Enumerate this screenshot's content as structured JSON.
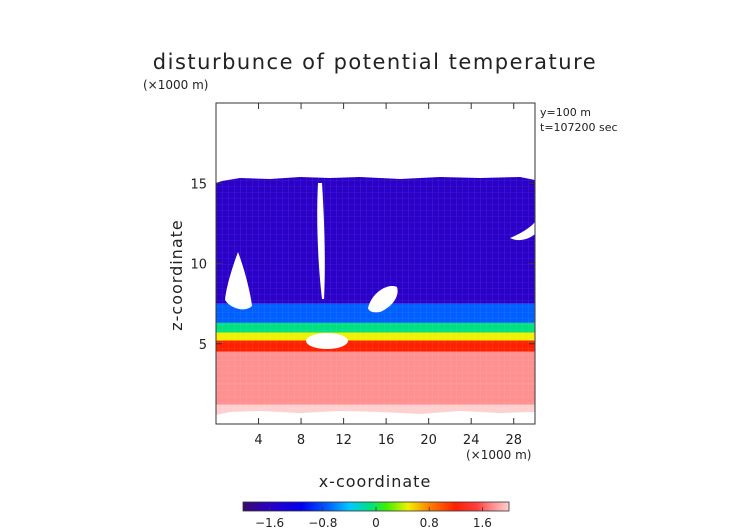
{
  "chart_data": {
    "type": "heatmap",
    "title": "disturbunce of potential temperature",
    "unit_label": "(×1000 m)",
    "annotations": [
      "y=100 m",
      "t=107200 sec"
    ],
    "xlabel": "x-coordinate",
    "ylabel": "z-coordinate",
    "x_unit": "(×1000 m)",
    "xlim": [
      0,
      30
    ],
    "ylim": [
      0,
      20
    ],
    "x_ticks": [
      4,
      8,
      12,
      16,
      20,
      24,
      28
    ],
    "x_tick_labels": [
      "4",
      "8",
      "12",
      "16",
      "20",
      "24",
      "28"
    ],
    "y_ticks": [
      5,
      10,
      15
    ],
    "y_tick_labels": [
      "5",
      "10",
      "15"
    ],
    "colorbar": {
      "range": [
        -2.0,
        2.0
      ],
      "ticks": [
        -1.6,
        -0.8,
        0,
        0.8,
        1.6
      ],
      "tick_labels": [
        "−1.6",
        "−0.8",
        "0",
        "0.8",
        "1.6"
      ],
      "colors": [
        "#3a0a6e",
        "#2a00c8",
        "#0000f0",
        "#0060ff",
        "#00c8ff",
        "#00e080",
        "#40f000",
        "#f0f000",
        "#ff8000",
        "#ff2000",
        "#ff4040",
        "#ff9090",
        "#ffd0d0"
      ]
    },
    "field_bands": [
      {
        "z_range": [
          15.5,
          20
        ],
        "value": null
      },
      {
        "z_range": [
          7.5,
          15.5
        ],
        "value": -1.6
      },
      {
        "z_range": [
          6.3,
          7.5
        ],
        "value": -0.9
      },
      {
        "z_range": [
          5.7,
          6.3
        ],
        "value": -0.3
      },
      {
        "z_range": [
          5.2,
          5.7
        ],
        "value": 0.4
      },
      {
        "z_range": [
          4.5,
          5.2
        ],
        "value": 1.0
      },
      {
        "z_range": [
          2.5,
          4.5
        ],
        "value": 1.5
      },
      {
        "z_range": [
          1.2,
          2.5
        ],
        "value": 1.8
      },
      {
        "z_range": [
          0,
          1.2
        ],
        "value": 2.0
      }
    ]
  }
}
